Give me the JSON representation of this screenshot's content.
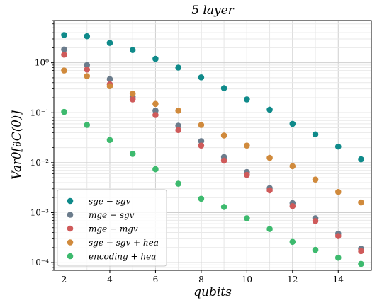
{
  "chart_data": {
    "type": "scatter",
    "title": "5 layer",
    "xlabel": "qubits",
    "ylabel": "Varθ[∂C(θ)]",
    "x": [
      2,
      3,
      4,
      5,
      6,
      7,
      8,
      9,
      10,
      11,
      12,
      13,
      14,
      15
    ],
    "xlim": [
      1.55,
      15.45
    ],
    "ylim": [
      7e-05,
      7
    ],
    "yscale": "log",
    "xticks": [
      "2",
      "4",
      "6",
      "8",
      "10",
      "12",
      "14"
    ],
    "xtick_values": [
      2,
      4,
      6,
      8,
      10,
      12,
      14
    ],
    "yticks": [
      "10⁻⁴",
      "10⁻³",
      "10⁻²",
      "10⁻¹",
      "10⁰"
    ],
    "ytick_values": [
      0.0001,
      0.001,
      0.01,
      0.1,
      1
    ],
    "grid": true,
    "legend_position": "bottom-left",
    "series": [
      {
        "name": "sge − sgv",
        "color": "#0f8a8a",
        "values": [
          3.6,
          3.4,
          2.5,
          1.8,
          1.2,
          0.8,
          0.51,
          0.31,
          0.185,
          0.115,
          0.06,
          0.037,
          0.021,
          0.0117
        ]
      },
      {
        "name": "mge − sgv",
        "color": "#6b7c8c",
        "values": [
          1.85,
          0.9,
          0.47,
          0.21,
          0.11,
          0.055,
          0.027,
          0.013,
          0.0065,
          0.0031,
          0.00155,
          0.00077,
          0.00038,
          0.00019
        ]
      },
      {
        "name": "mge − mgv",
        "color": "#cf5a5a",
        "values": [
          1.45,
          0.73,
          0.37,
          0.185,
          0.09,
          0.045,
          0.022,
          0.011,
          0.0057,
          0.0028,
          0.00135,
          0.00068,
          0.00034,
          0.00017
        ]
      },
      {
        "name": "sge − sgv + hea",
        "color": "#d08a3c",
        "values": [
          0.7,
          0.54,
          0.34,
          0.24,
          0.15,
          0.11,
          0.057,
          0.035,
          0.022,
          0.0125,
          0.0085,
          0.0046,
          0.0026,
          0.0016
        ]
      },
      {
        "name": "encoding + hea",
        "color": "#3dba6e",
        "values": [
          0.104,
          0.057,
          0.0285,
          0.015,
          0.0074,
          0.0038,
          0.0019,
          0.0013,
          0.00077,
          0.00047,
          0.00026,
          0.00018,
          0.000125,
          9.4e-05
        ]
      }
    ]
  }
}
